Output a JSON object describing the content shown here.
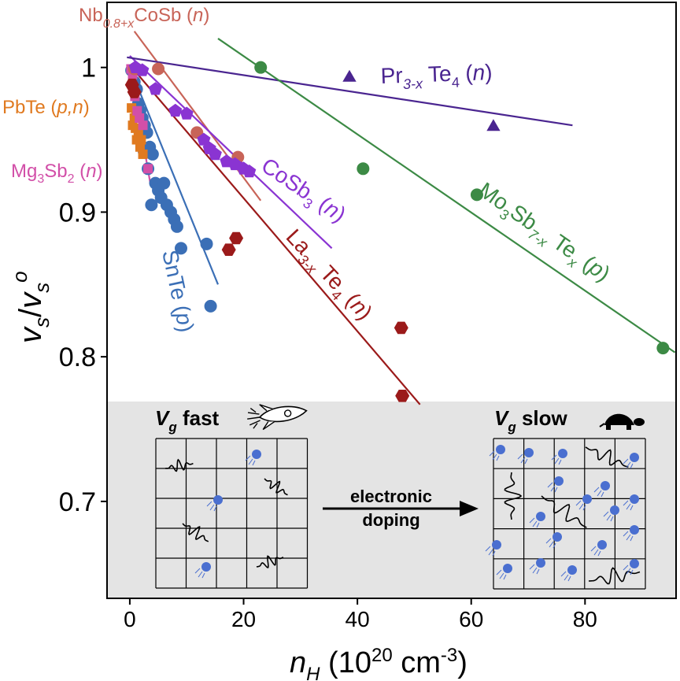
{
  "chart_data": {
    "type": "scatter",
    "xlabel_main": "n",
    "xlabel_sub": "H",
    "xlabel_rest": " (10",
    "xlabel_exp": "20",
    "xlabel_unit": " cm",
    "xlabel_unit_exp": "-3",
    "xlabel_close": ")",
    "ylabel_v": "v",
    "ylabel_s": "s",
    "ylabel_slash": "/",
    "ylabel_o": "o",
    "xlim": [
      -4,
      96
    ],
    "ylim": [
      0.633,
      1.045
    ],
    "x_ticks": [
      0,
      20,
      40,
      60,
      80
    ],
    "x_tick_labels": [
      "0",
      "20",
      "40",
      "60",
      "80"
    ],
    "y_ticks": [
      0.7,
      0.8,
      0.9,
      1.0
    ],
    "y_tick_labels": [
      "0.7",
      "0.8",
      "0.9",
      "1"
    ],
    "grid": false,
    "series": [
      {
        "name": "SnTe",
        "carrier": "p",
        "color": "#3b6fb6",
        "marker": "circle",
        "points": [
          [
            0.3,
            0.998
          ],
          [
            0.8,
            0.99
          ],
          [
            1.2,
            0.985
          ],
          [
            1.5,
            0.975
          ],
          [
            1.8,
            0.97
          ],
          [
            2.2,
            0.965
          ],
          [
            2.6,
            0.96
          ],
          [
            3.0,
            0.955
          ],
          [
            3.5,
            0.945
          ],
          [
            4.0,
            0.94
          ],
          [
            2.5,
            0.942
          ],
          [
            3.2,
            0.93
          ],
          [
            4.5,
            0.92
          ],
          [
            5.0,
            0.915
          ],
          [
            5.5,
            0.91
          ],
          [
            6.0,
            0.92
          ],
          [
            6.5,
            0.905
          ],
          [
            7.2,
            0.9
          ],
          [
            7.8,
            0.895
          ],
          [
            8.3,
            0.89
          ],
          [
            9.0,
            0.875
          ],
          [
            3.8,
            0.905
          ],
          [
            13.5,
            0.878
          ],
          [
            14.2,
            0.835
          ]
        ],
        "line": [
          [
            0.0,
            1.0
          ],
          [
            15.5,
            0.85
          ]
        ]
      },
      {
        "name": "PbTe",
        "carrier": "p,n",
        "color": "#e07a20",
        "marker": "square",
        "points": [
          [
            0.3,
            0.972
          ],
          [
            0.5,
            0.96
          ],
          [
            0.8,
            0.965
          ],
          [
            1.0,
            0.958
          ],
          [
            1.2,
            0.95
          ],
          [
            1.5,
            0.955
          ],
          [
            1.8,
            0.945
          ],
          [
            2.0,
            0.95
          ],
          [
            2.3,
            0.94
          ],
          [
            1.1,
            0.97
          ]
        ],
        "line": null
      },
      {
        "name": "Mg3Sb2",
        "carrier": "n",
        "color": "#d24fa8",
        "marker": "square",
        "points": [
          [
            0.2,
            0.999
          ],
          [
            0.5,
            0.995
          ],
          [
            0.9,
            0.98
          ],
          [
            1.3,
            0.97
          ],
          [
            1.7,
            0.965
          ],
          [
            2.3,
            0.96
          ],
          [
            3.2,
            0.93
          ]
        ],
        "line": [
          [
            0.0,
            1.002
          ],
          [
            3.6,
            0.92
          ]
        ]
      },
      {
        "name": "Nb0.8+xCoSb",
        "carrier": "n",
        "color": "#c86458",
        "marker": "circle",
        "points": [
          [
            0.8,
            0.999
          ],
          [
            5.0,
            0.999
          ],
          [
            11.8,
            0.955
          ],
          [
            19.0,
            0.938
          ]
        ],
        "line": [
          [
            0.8,
            1.025
          ],
          [
            23.0,
            0.908
          ]
        ]
      },
      {
        "name": "CoSb3",
        "carrier": "n",
        "color": "#8a34d2",
        "marker": "pentagon",
        "points": [
          [
            1.0,
            1.0
          ],
          [
            2.2,
            0.998
          ],
          [
            4.5,
            0.985
          ],
          [
            8.0,
            0.97
          ],
          [
            10.0,
            0.968
          ],
          [
            13.0,
            0.95
          ],
          [
            14.0,
            0.944
          ],
          [
            15.0,
            0.94
          ],
          [
            17.0,
            0.935
          ],
          [
            18.5,
            0.933
          ],
          [
            20.0,
            0.93
          ],
          [
            21.0,
            0.928
          ]
        ],
        "line": [
          [
            0.0,
            1.008
          ],
          [
            35.5,
            0.875
          ]
        ]
      },
      {
        "name": "La3-xTe4",
        "carrier": "n",
        "color": "#9b1a1a",
        "marker": "hexagon",
        "points": [
          [
            0.4,
            0.988
          ],
          [
            0.8,
            0.983
          ],
          [
            17.4,
            0.874
          ],
          [
            18.7,
            0.882
          ],
          [
            47.7,
            0.82
          ],
          [
            47.9,
            0.773
          ]
        ],
        "line": [
          [
            0.8,
            0.998
          ],
          [
            51.0,
            0.767
          ]
        ]
      },
      {
        "name": "Pr3-xTe4",
        "carrier": "n",
        "color": "#4a2590",
        "marker": "triangle",
        "points": [
          [
            38.6,
            0.994
          ],
          [
            63.9,
            0.96
          ]
        ],
        "line": [
          [
            -0.5,
            1.007
          ],
          [
            77.8,
            0.96
          ]
        ]
      },
      {
        "name": "Mo3Sb7-xTex",
        "carrier": "p",
        "color": "#3c8a45",
        "marker": "circle",
        "points": [
          [
            23.0,
            1.0
          ],
          [
            41.0,
            0.93
          ],
          [
            61.0,
            0.912
          ],
          [
            93.7,
            0.806
          ]
        ],
        "line": [
          [
            15.5,
            1.02
          ],
          [
            95.8,
            0.803
          ]
        ]
      }
    ]
  },
  "labels": {
    "snte": {
      "name": "SnTe",
      "open": " (",
      "carrier": "p",
      "close": ")"
    },
    "pbte": {
      "name": "PbTe",
      "open": " (",
      "carrier": "p,n",
      "close": ")"
    },
    "mg3sb2": {
      "a": "Mg",
      "sub1": "3",
      "b": "Sb",
      "sub2": "2",
      "open": " (",
      "carrier": "n",
      "close": ")"
    },
    "nbcosb": {
      "a": "Nb",
      "sub1": "0.8+x",
      "b": "CoSb",
      "open": " (",
      "carrier": "n",
      "close": ")"
    },
    "cosb3": {
      "a": "CoSb",
      "sub1": "3",
      "open": " (",
      "carrier": "n",
      "close": ")"
    },
    "late4": {
      "a": "La",
      "sub1": "3-x",
      "b": " Te",
      "sub2": "4",
      "open": " (",
      "carrier": "n",
      "close": ")"
    },
    "prte4": {
      "a": "Pr",
      "sub1": "3-x",
      "b": " Te",
      "sub2": "4",
      "open": " (",
      "carrier": "n",
      "close": ")"
    },
    "mosbte": {
      "a": "Mo",
      "sub1": "3",
      "b": "Sb",
      "sub2": "7-x",
      "c": " Te",
      "sub3": "x",
      "open": " (",
      "carrier": "p",
      "close": ")"
    }
  },
  "inset": {
    "background": "#e4e4e4",
    "fast_v": "V",
    "fast_sub": "g",
    "fast_word": " fast",
    "slow_v": "V",
    "slow_sub": "g",
    "slow_word": " slow",
    "arrow_line1": "electronic",
    "arrow_line2": "doping",
    "rocket_icon": "rocket-icon",
    "turtle_icon": "turtle-icon",
    "electron_color": "#4a6fd0"
  }
}
